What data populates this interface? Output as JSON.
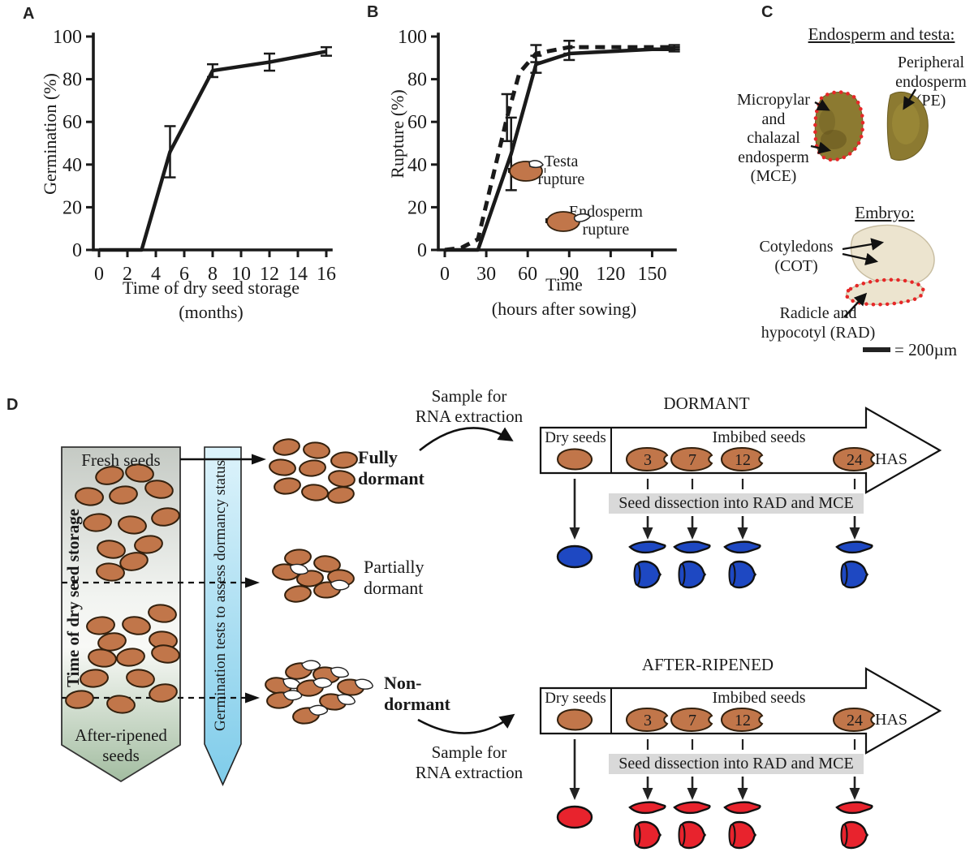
{
  "figure": {
    "panel_labels": {
      "a": "A",
      "b": "B",
      "c": "C",
      "d": "D"
    }
  },
  "chart_data": [
    {
      "id": "A",
      "type": "line",
      "title": "",
      "ylabel": "Germination (%)",
      "xlabel": "Time of dry seed storage",
      "xlabel2": "(months)",
      "xlim": [
        0,
        16.8
      ],
      "ylim": [
        0,
        100
      ],
      "xticks": [
        0,
        2,
        4,
        6,
        8,
        10,
        12,
        14,
        16
      ],
      "yticks": [
        0,
        20,
        40,
        60,
        80,
        100
      ],
      "grid": false,
      "series": [
        {
          "name": "Germination",
          "style": "solid",
          "x": [
            0,
            1,
            2,
            3,
            5,
            8,
            12,
            16
          ],
          "y": [
            0,
            0,
            0,
            0,
            46,
            84,
            88,
            93
          ],
          "yerr": [
            0,
            0,
            0,
            0,
            12,
            3,
            4,
            2
          ]
        }
      ]
    },
    {
      "id": "B",
      "type": "line",
      "title": "",
      "ylabel": "Rupture (%)",
      "xlabel": "Time",
      "xlabel2": "(hours after sowing)",
      "xlim": [
        0,
        166
      ],
      "ylim": [
        0,
        100
      ],
      "xticks": [
        0,
        30,
        60,
        90,
        120,
        150
      ],
      "yticks": [
        0,
        20,
        40,
        60,
        80,
        100
      ],
      "grid": false,
      "legend_position": "lower right",
      "series": [
        {
          "name": "Testa rupture",
          "style": "dashed",
          "x": [
            0,
            12,
            24,
            45,
            54,
            66,
            90,
            120,
            150,
            166
          ],
          "y": [
            0,
            1,
            5,
            62,
            83,
            92,
            95,
            95,
            95,
            95
          ],
          "yerr": [
            0,
            0,
            0,
            11,
            0,
            4,
            3,
            0,
            0,
            1
          ]
        },
        {
          "name": "Endosperm rupture",
          "style": "solid",
          "x": [
            0,
            24,
            48,
            66,
            90,
            120,
            150,
            166
          ],
          "y": [
            0,
            0,
            45,
            87,
            92,
            93,
            94,
            94
          ],
          "yerr": [
            0,
            0,
            17,
            4,
            3,
            0,
            0,
            1
          ]
        }
      ],
      "legend": [
        {
          "label": "Testa\nrupture",
          "style": "dashed"
        },
        {
          "label": "Endosperm\nrupture",
          "style": "solid"
        }
      ]
    }
  ],
  "panelC": {
    "section1_title": "Endosperm and testa:",
    "mce_label": "Micropylar\nand\nchalazal\nendosperm\n(MCE)",
    "pe_label": "Peripheral\nendosperm\n(PE)",
    "section2_title": "Embryo:",
    "cot_label": "Cotyledons\n(COT)",
    "rad_label": "Radicle and\nhypocotyl (RAD)",
    "scale_label": "= 200µm"
  },
  "panelD": {
    "banner": {
      "top": "Fresh seeds",
      "side": "Time of dry seed storage",
      "bottom": "After-ripened\nseeds"
    },
    "germination_arrow_label": "Germination tests to assess dormancy status",
    "groups": [
      {
        "label": "Fully\ndormant",
        "bold": true
      },
      {
        "label": "Partially\ndormant",
        "bold": false
      },
      {
        "label": "Non-\ndormant",
        "bold": true
      }
    ],
    "rna_label_top": "Sample for\nRNA extraction",
    "rna_label_bottom": "Sample for\nRNA extraction",
    "timelines": [
      {
        "title": "DORMANT",
        "dry_label": "Dry seeds",
        "imbibed_label": "Imbibed seeds",
        "unit_label": "HAS",
        "timepoints": [
          "3",
          "7",
          "12",
          "24"
        ],
        "dissection_label": "Seed dissection into RAD and MCE",
        "color": "#1e48c2"
      },
      {
        "title": "AFTER-RIPENED",
        "dry_label": "Dry seeds",
        "imbibed_label": "Imbibed seeds",
        "unit_label": "HAS",
        "timepoints": [
          "3",
          "7",
          "12",
          "24"
        ],
        "dissection_label": "Seed dissection into RAD and MCE",
        "color": "#e8232d"
      }
    ]
  },
  "colors": {
    "seed_fill": "#c1764a",
    "seed_outline": "#33200d",
    "dormant_blue": "#1e48c2",
    "after_ripened_red": "#e8232d",
    "dissection_band": "#d9d9d9",
    "red_dotted": "#e62828",
    "banner_top": "#c5cac4",
    "banner_mid": "#f2f4f1",
    "banner_bottom": "#a3bda1",
    "germ_arrow_top": "#ddf3fb",
    "germ_arrow_bottom": "#7fccea",
    "seed_photo_olive": "#8c7a31",
    "embryo_photo_cream": "#ece4cf",
    "line_color": "#1a1a1a"
  }
}
